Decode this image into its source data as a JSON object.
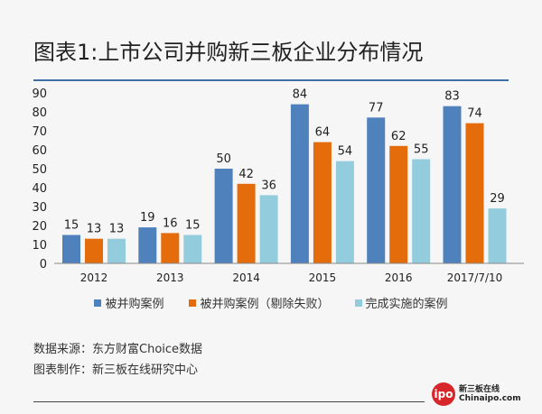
{
  "title": "图表1:上市公司并购新三板企业分布情况",
  "chart_data": {
    "type": "bar",
    "title": "图表1:上市公司并购新三板企业分布情况",
    "categories": [
      "2012",
      "2013",
      "2014",
      "2015",
      "2016",
      "2017/7/10"
    ],
    "series": [
      {
        "name": "被并购案例",
        "values": [
          15,
          19,
          50,
          84,
          77,
          83
        ],
        "color": "#4f81bd"
      },
      {
        "name": "被并购案例（剔除失败）",
        "values": [
          13,
          16,
          42,
          64,
          62,
          74
        ],
        "color": "#e46c0a"
      },
      {
        "name": "完成实施的案例",
        "values": [
          13,
          15,
          36,
          54,
          55,
          29
        ],
        "color": "#93cddd"
      }
    ],
    "yticks": [
      0,
      10,
      20,
      30,
      40,
      50,
      60,
      70,
      80,
      90
    ],
    "ylim": [
      0,
      90
    ],
    "grid": false,
    "legend": "bottom",
    "data_labels": true
  },
  "footer": {
    "source": "数据来源：东方财富Choice数据",
    "maker": "图表制作：新三板在线研究中心"
  },
  "logo": {
    "mark": "ipo",
    "badge": "China",
    "name": "新三板在线",
    "site": "Chinaipo.com"
  }
}
